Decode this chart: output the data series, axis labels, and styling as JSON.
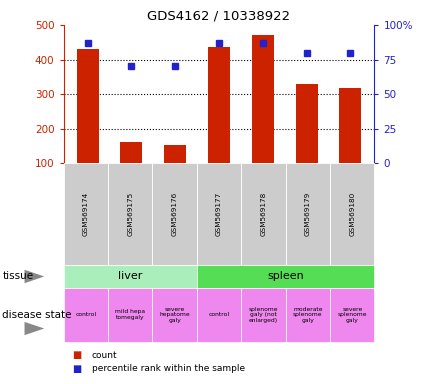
{
  "title": "GDS4162 / 10338922",
  "samples": [
    "GSM569174",
    "GSM569175",
    "GSM569176",
    "GSM569177",
    "GSM569178",
    "GSM569179",
    "GSM569180"
  ],
  "counts": [
    430,
    160,
    153,
    435,
    470,
    328,
    318
  ],
  "percentile_ranks": [
    87,
    70,
    70,
    87,
    87,
    80,
    80
  ],
  "ylim_left": [
    100,
    500
  ],
  "ylim_right": [
    0,
    100
  ],
  "yticks_left": [
    100,
    200,
    300,
    400,
    500
  ],
  "yticks_right": [
    0,
    25,
    50,
    75,
    100
  ],
  "bar_color": "#cc2200",
  "dot_color": "#2222cc",
  "tissue_liver_label": "liver",
  "tissue_spleen_label": "spleen",
  "tissue_liver_color": "#aaeebb",
  "tissue_spleen_color": "#55dd55",
  "disease_labels": [
    "control",
    "mild hepa\ntomegaly",
    "severe\nhepatome\ngaly",
    "control",
    "splenome\ngaly (not\nenlarged)",
    "moderate\nsplenome\ngaly",
    "severe\nsplenome\ngaly"
  ],
  "disease_color": "#ee88ee",
  "left_axis_color": "#cc2200",
  "right_axis_color": "#2222cc",
  "background_color": "#ffffff",
  "grid_color": "#000000",
  "sample_bg_color": "#cccccc",
  "legend_count_label": "count",
  "legend_pct_label": "percentile rank within the sample",
  "tissue_label": "tissue",
  "disease_state_label": "disease state"
}
